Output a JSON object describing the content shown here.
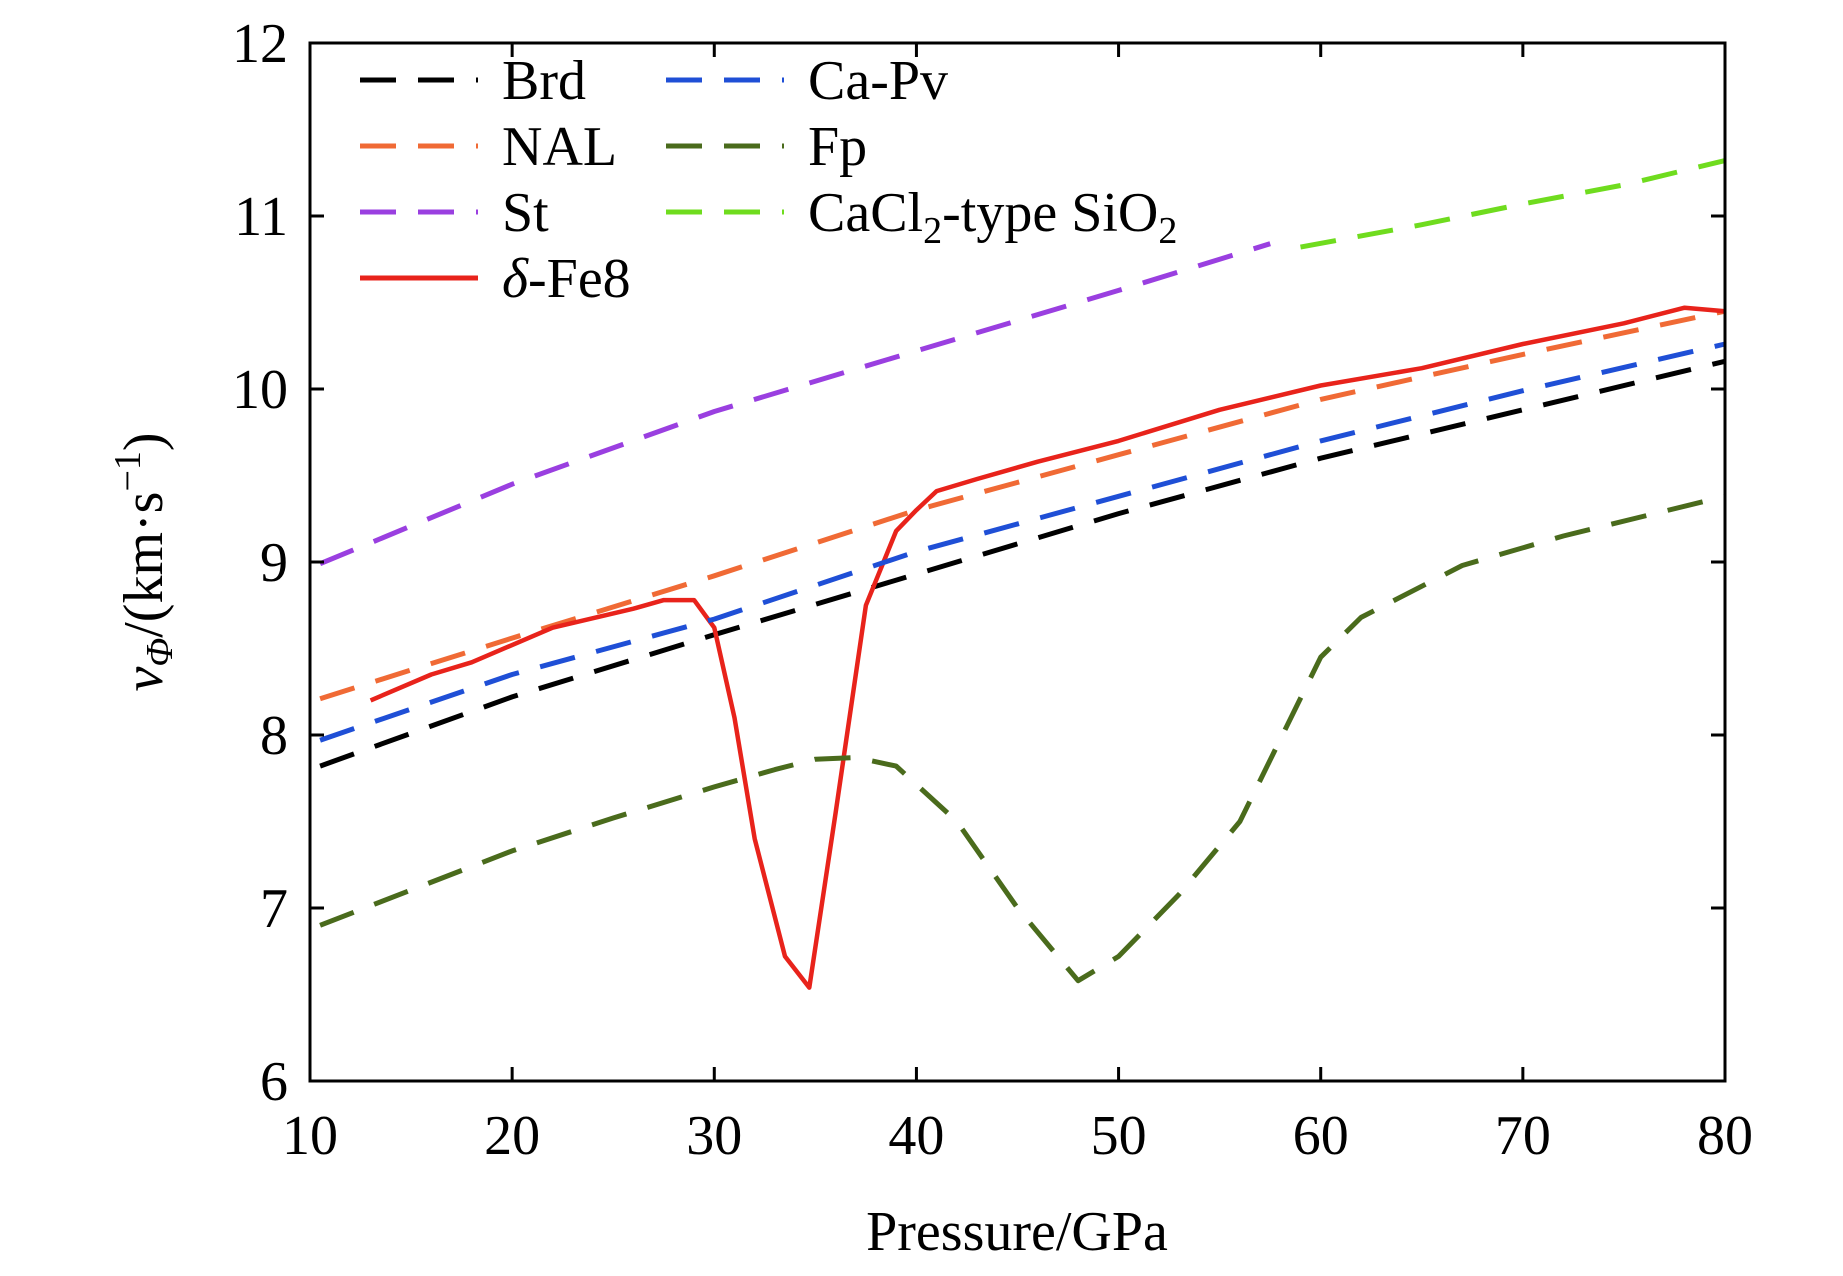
{
  "chart_data": {
    "type": "line",
    "xlabel": "Pressure/GPa",
    "ylabel": {
      "var": "v",
      "sub": "Φ",
      "unit_prefix": "/(km·s",
      "unit_sup": "−1",
      "unit_suffix": ")"
    },
    "xlim": [
      10,
      80
    ],
    "ylim": [
      6,
      12
    ],
    "xticks": [
      "10",
      "20",
      "30",
      "40",
      "50",
      "60",
      "70",
      "80"
    ],
    "yticks": [
      "6",
      "7",
      "8",
      "9",
      "10",
      "11",
      "12"
    ],
    "grid": false,
    "legend_position": "top-left",
    "series": [
      {
        "name": "Brd",
        "color": "#000000",
        "dash": true,
        "x": [
          10.5,
          20,
          30,
          40,
          50,
          60,
          70,
          80
        ],
        "y": [
          7.82,
          8.22,
          8.58,
          8.93,
          9.28,
          9.6,
          9.88,
          10.16
        ]
      },
      {
        "name": "NAL",
        "color": "#f06a35",
        "dash": true,
        "x": [
          10.5,
          20,
          30,
          40,
          50,
          60,
          70,
          80
        ],
        "y": [
          8.21,
          8.56,
          8.92,
          9.3,
          9.62,
          9.94,
          10.2,
          10.45
        ]
      },
      {
        "name": "St",
        "color": "#9a3fe0",
        "dash": true,
        "x": [
          10.5,
          20,
          30,
          40,
          50,
          57.5
        ],
        "y": [
          8.99,
          9.45,
          9.87,
          10.22,
          10.57,
          10.84
        ]
      },
      {
        "name": "δ-Fe8",
        "label_italic": "δ",
        "label_rest": "-Fe8",
        "color": "#e8231b",
        "dash": false,
        "x": [
          13,
          16,
          18,
          22,
          26,
          27.5,
          29,
          30,
          31,
          32,
          33.5,
          34.7,
          36,
          37.5,
          39,
          40,
          41,
          43,
          46,
          50,
          55,
          60,
          65,
          70,
          75,
          78,
          80
        ],
        "y": [
          8.2,
          8.35,
          8.42,
          8.62,
          8.73,
          8.78,
          8.78,
          8.62,
          8.1,
          7.4,
          6.72,
          6.54,
          7.55,
          8.75,
          9.18,
          9.3,
          9.41,
          9.48,
          9.58,
          9.7,
          9.88,
          10.02,
          10.12,
          10.26,
          10.38,
          10.47,
          10.45
        ]
      },
      {
        "name": "Ca-Pv",
        "color": "#1f4fd6",
        "dash": true,
        "x": [
          10.5,
          20,
          30,
          40,
          50,
          60,
          70,
          80
        ],
        "y": [
          7.97,
          8.35,
          8.67,
          9.06,
          9.38,
          9.7,
          9.99,
          10.26
        ]
      },
      {
        "name": "Fp",
        "color": "#4a6b1c",
        "dash": true,
        "x": [
          10.5,
          20,
          25,
          30,
          33,
          35,
          37,
          39,
          42,
          45,
          48,
          50,
          53,
          56,
          60,
          62,
          67,
          72,
          80
        ],
        "y": [
          6.9,
          7.33,
          7.52,
          7.7,
          7.8,
          7.86,
          7.87,
          7.82,
          7.5,
          7.0,
          6.58,
          6.72,
          7.08,
          7.5,
          8.45,
          8.68,
          8.98,
          9.15,
          9.38
        ]
      },
      {
        "name": "CaCl2-type SiO2",
        "label_segments": [
          {
            "text": "CaCl",
            "style": "normal"
          },
          {
            "text": "2",
            "style": "sub"
          },
          {
            "text": "-type SiO",
            "style": "normal"
          },
          {
            "text": "2",
            "style": "sub"
          }
        ],
        "color": "#6fdc1e",
        "dash": true,
        "x": [
          59,
          65,
          70,
          75,
          80
        ],
        "y": [
          10.82,
          10.95,
          11.07,
          11.18,
          11.32
        ]
      }
    ]
  }
}
